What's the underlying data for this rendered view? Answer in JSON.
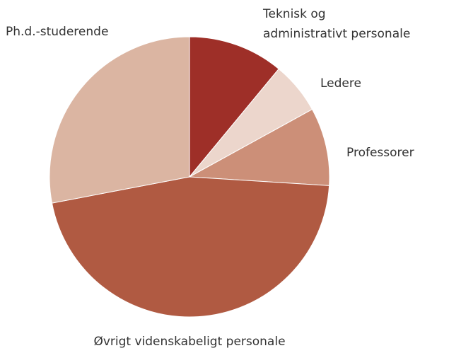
{
  "chart_data": {
    "type": "pie",
    "labels": [
      "Teknisk og\nadministrativt personale",
      "Ledere",
      "Professorer",
      "Øvrigt videnskabeligt personale",
      "Ph.d.-studerende"
    ],
    "values": [
      11,
      6,
      9,
      46,
      28
    ],
    "colors": [
      "#9e2f28",
      "#ecd6cc",
      "#cc8f78",
      "#b05a42",
      "#dbb5a2"
    ]
  }
}
